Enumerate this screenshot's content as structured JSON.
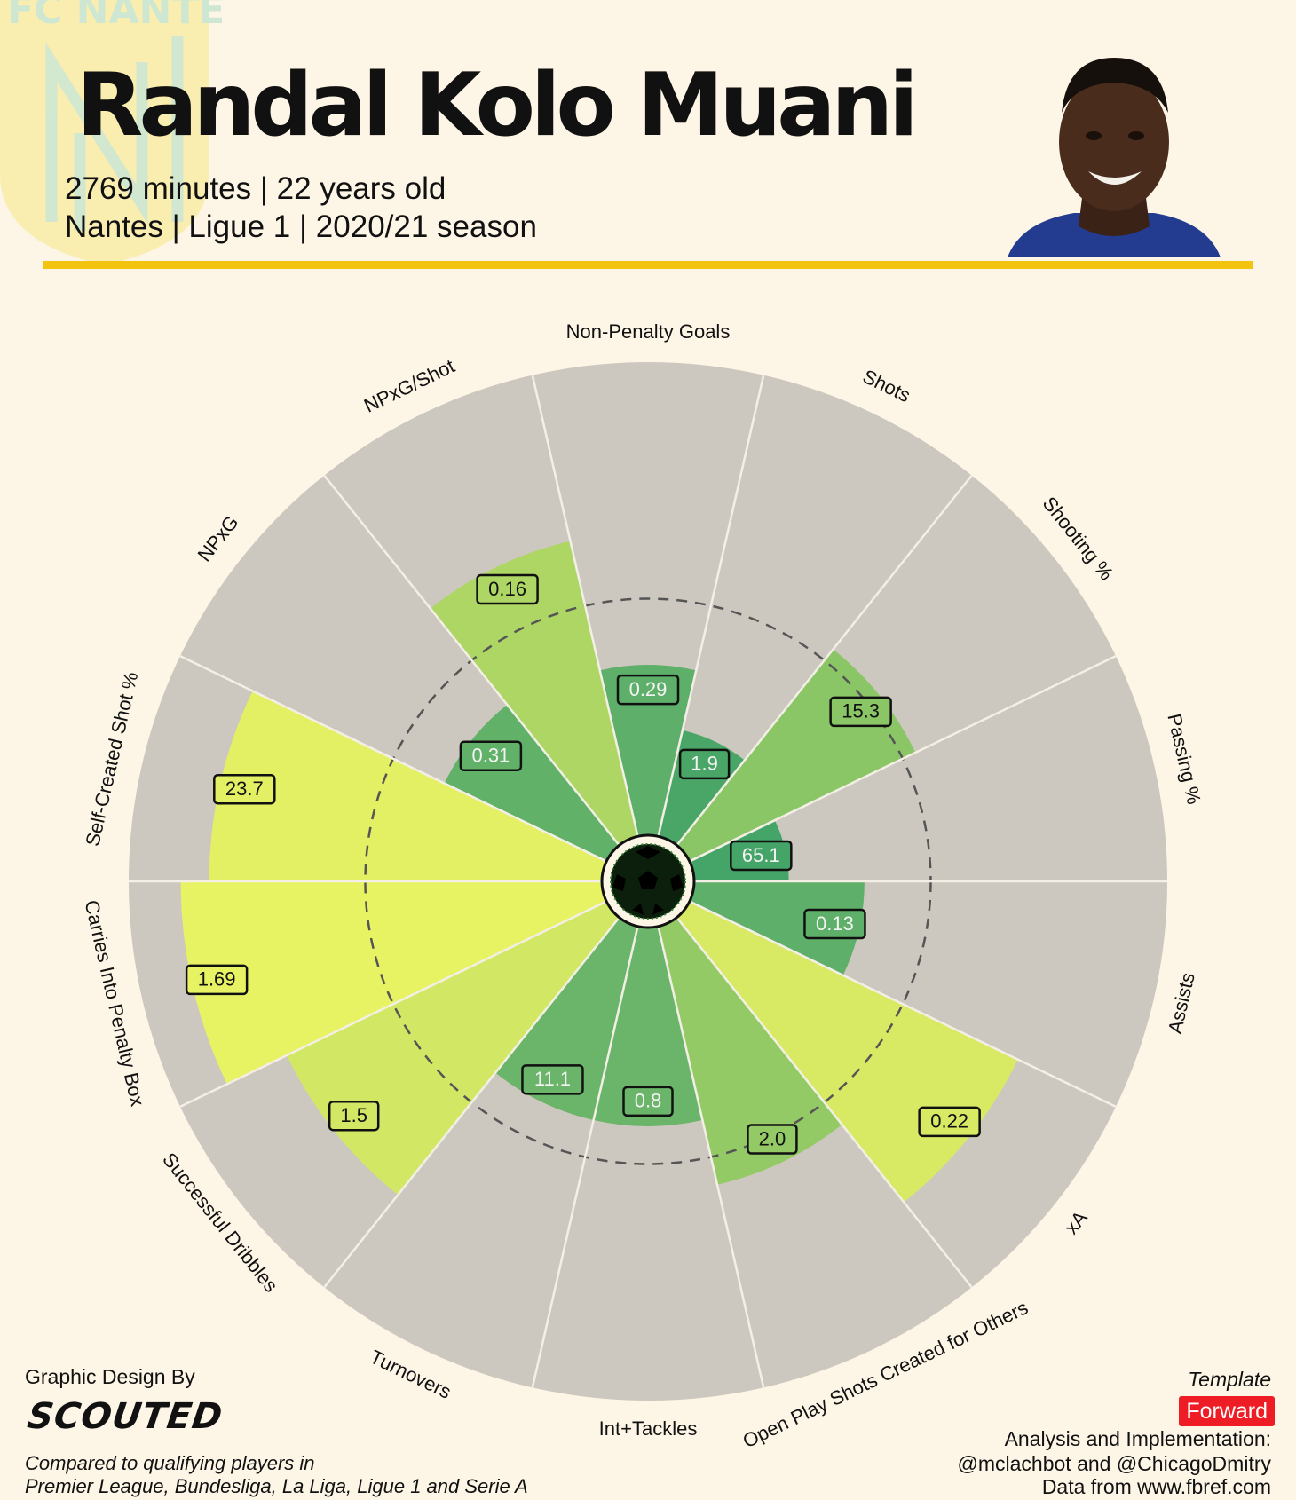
{
  "header": {
    "player_name": "Randal Kolo Muani",
    "subtitle_line1": "2769 minutes | 22 years old",
    "subtitle_line2": "Nantes | Ligue 1 | 2020/21 season",
    "club_logo_text": "FC NANTES",
    "accent_color": "#f2c30f"
  },
  "footer": {
    "design_label": "Graphic Design By",
    "brand": "SCOUTED",
    "comparison_line1": "Compared to qualifying players in",
    "comparison_line2": "Premier League, Bundesliga, La Liga, Ligue 1 and Serie A",
    "template_label": "Template",
    "template_value": "Forward",
    "credits_line1": "Analysis and Implementation:",
    "credits_line2": "@mclachbot and @ChicagoDmitry",
    "credits_line3": "Data from www.fbref.com"
  },
  "chart_data": {
    "type": "radar",
    "subtype": "pizza",
    "percentile_range": [
      0,
      100
    ],
    "reference_ring_percentile": 50,
    "slice_background_color": "#cdc8bf",
    "series": [
      {
        "name": "Randal Kolo Muani",
        "metrics": [
          {
            "label": "Non-Penalty Goals",
            "value": "0.29",
            "percentile": 36
          },
          {
            "label": "Shots",
            "value": "1.9",
            "percentile": 23
          },
          {
            "label": "Shooting %",
            "value": "15.3",
            "percentile": 53
          },
          {
            "label": "Passing %",
            "value": "65.1",
            "percentile": 20
          },
          {
            "label": "Assists",
            "value": "0.13",
            "percentile": 36
          },
          {
            "label": "xA",
            "value": "0.22",
            "percentile": 77
          },
          {
            "label": "Open Play Shots Created for Others",
            "value": "2.0",
            "percentile": 56
          },
          {
            "label": "Int+Tackles",
            "value": "0.8",
            "percentile": 42
          },
          {
            "label": "Turnovers",
            "value": "11.1",
            "percentile": 42
          },
          {
            "label": "Successful Dribbles",
            "value": "1.5",
            "percentile": 75
          },
          {
            "label": "Carries Into Penalty Box",
            "value": "1.69",
            "percentile": 89
          },
          {
            "label": "Self-Created Shot %",
            "value": "23.7",
            "percentile": 83
          },
          {
            "label": "NPxG",
            "value": "0.31",
            "percentile": 38
          },
          {
            "label": "NPxG/Shot",
            "value": "0.16",
            "percentile": 64
          }
        ]
      }
    ]
  }
}
